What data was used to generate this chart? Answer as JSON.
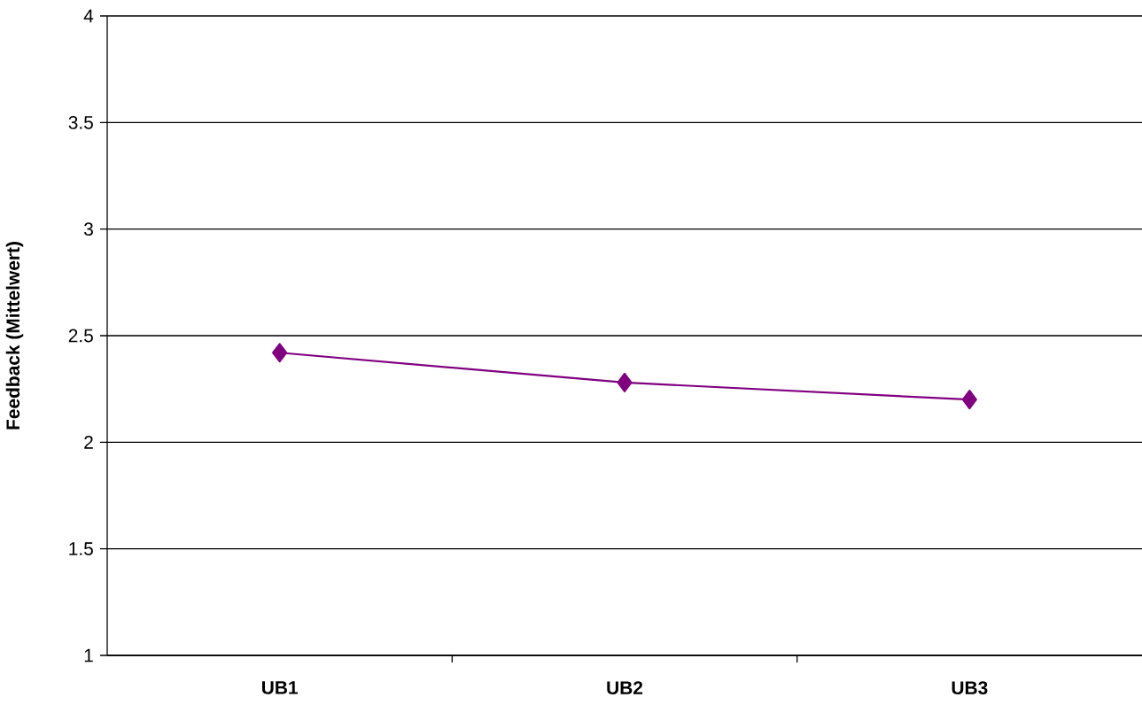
{
  "chart_data": {
    "type": "line",
    "ylabel": "Feedback (Mittelwert)",
    "categories": [
      "UB1",
      "UB2",
      "UB3"
    ],
    "series": [
      {
        "color": "#800080",
        "values": [
          2.42,
          2.28,
          2.2
        ]
      }
    ],
    "ylim": [
      1,
      4
    ],
    "yticks": [
      1,
      1.5,
      2,
      2.5,
      3,
      3.5,
      4
    ],
    "grid": "y",
    "marker": "diamond",
    "line_style": "solid"
  }
}
